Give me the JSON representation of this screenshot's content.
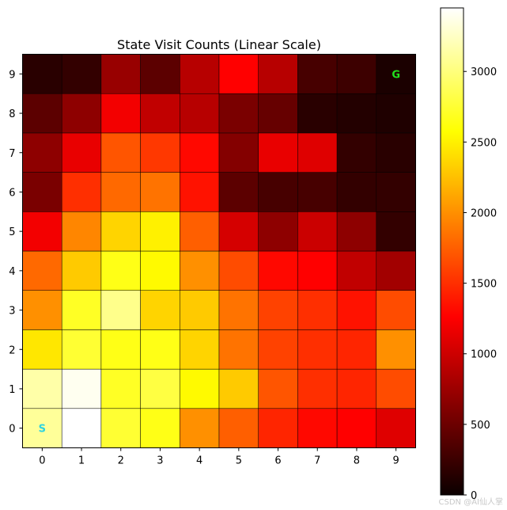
{
  "chart_data": {
    "type": "heatmap",
    "title": "State Visit Counts (Linear Scale)",
    "x_ticks": [
      "0",
      "1",
      "2",
      "3",
      "4",
      "5",
      "6",
      "7",
      "8",
      "9"
    ],
    "y_ticks": [
      "0",
      "1",
      "2",
      "3",
      "4",
      "5",
      "6",
      "7",
      "8",
      "9"
    ],
    "colormap": "hot",
    "value_range": [
      0,
      3450
    ],
    "colorbar_ticks": [
      0,
      500,
      1000,
      1500,
      2000,
      2500,
      3000
    ],
    "rows_y0_to_y9": [
      [
        3100,
        3450,
        2750,
        2650,
        2000,
        1750,
        1450,
        1300,
        1250,
        1050
      ],
      [
        3150,
        3400,
        2700,
        2800,
        2550,
        2300,
        1700,
        1500,
        1450,
        1650
      ],
      [
        2450,
        2750,
        2650,
        2650,
        2350,
        1850,
        1600,
        1500,
        1450,
        2000
      ],
      [
        2000,
        2700,
        3050,
        2350,
        2300,
        1850,
        1600,
        1500,
        1350,
        1650
      ],
      [
        1800,
        2300,
        2650,
        2550,
        2000,
        1650,
        1300,
        1250,
        900,
        750
      ],
      [
        1150,
        1950,
        2350,
        2500,
        1750,
        1000,
        650,
        950,
        650,
        200
      ],
      [
        550,
        1500,
        1800,
        1850,
        1350,
        400,
        300,
        300,
        200,
        200
      ],
      [
        650,
        1100,
        1700,
        1550,
        1300,
        600,
        1100,
        1050,
        200,
        150
      ],
      [
        400,
        650,
        1150,
        900,
        850,
        550,
        450,
        150,
        120,
        100
      ],
      [
        150,
        200,
        700,
        400,
        850,
        1250,
        850,
        300,
        250,
        80
      ]
    ],
    "markers": [
      {
        "x": 0,
        "y": 0,
        "label": "S",
        "color": "#2fd3e0"
      },
      {
        "x": 9,
        "y": 9,
        "label": "G",
        "color": "#22e01e"
      }
    ]
  },
  "watermark": "CSDN @AI仙人掌"
}
